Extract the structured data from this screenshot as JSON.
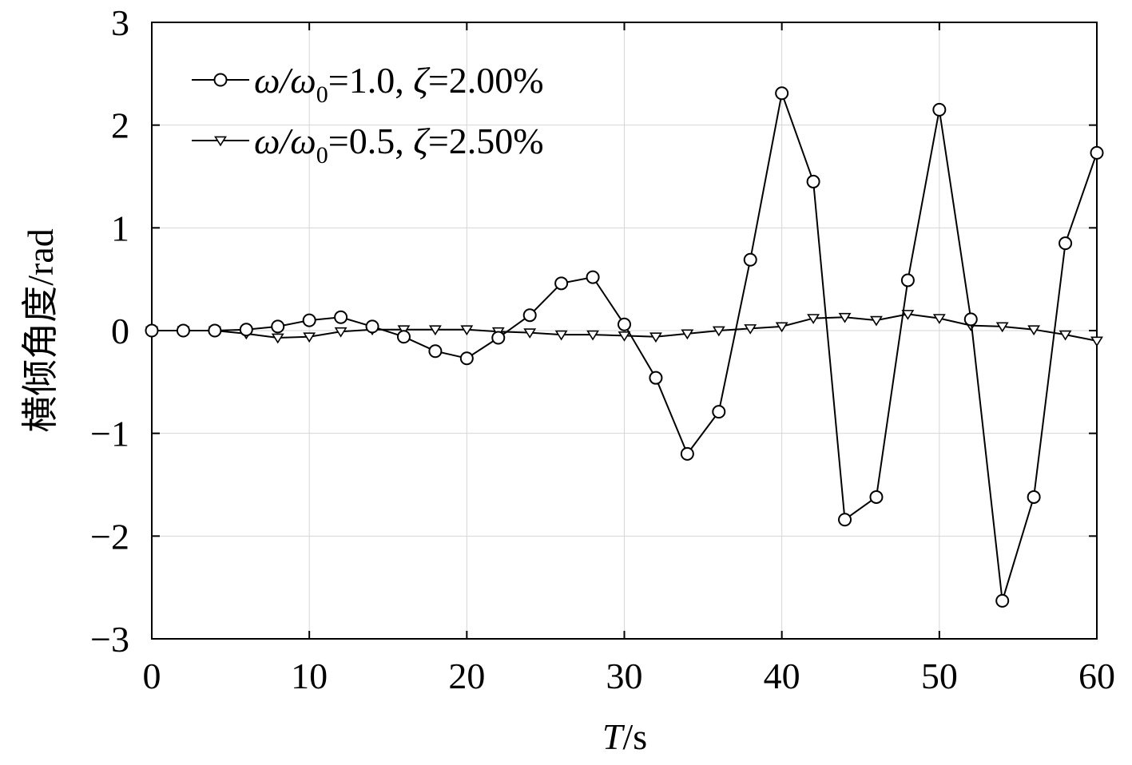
{
  "chart_data": {
    "type": "line",
    "xlabel": "T/s",
    "xlabel_italic_part": "T",
    "xlabel_unit": "/s",
    "ylabel": "横倾角度/rad",
    "xlim": [
      0,
      60
    ],
    "ylim": [
      -3,
      3
    ],
    "xticks": [
      0,
      10,
      20,
      30,
      40,
      50,
      60
    ],
    "yticks": [
      -3,
      -2,
      -1,
      0,
      1,
      2,
      3
    ],
    "ytick_labels": [
      "−3",
      "−2",
      "−1",
      "0",
      "1",
      "2",
      "3"
    ],
    "grid": true,
    "legend_position": "top-left",
    "series": [
      {
        "name": "ω/ω0=1.0, ζ=2.00%",
        "legend": {
          "omega": "ω",
          "slash": "/",
          "omega0": "ω",
          "sub": "0",
          "rest1": "=1.0, ",
          "zeta": "ζ",
          "rest2": "=2.00%"
        },
        "marker": "circle",
        "x": [
          0,
          2,
          4,
          6,
          8,
          10,
          12,
          14,
          16,
          18,
          20,
          22,
          24,
          26,
          28,
          30,
          32,
          34,
          36,
          38,
          40,
          42,
          44,
          46,
          48,
          50,
          52,
          54,
          56,
          58,
          60
        ],
        "y": [
          0,
          0,
          0,
          0.01,
          0.04,
          0.1,
          0.13,
          0.04,
          -0.06,
          -0.2,
          -0.27,
          -0.07,
          0.15,
          0.46,
          0.52,
          0.06,
          -0.46,
          -1.2,
          -0.79,
          0.69,
          2.31,
          1.45,
          -1.84,
          -1.62,
          0.49,
          2.15,
          0.11,
          -2.63,
          -1.62,
          0.85,
          1.73
        ]
      },
      {
        "name": "ω/ω0=0.5, ζ=2.50%",
        "legend": {
          "omega": "ω",
          "slash": "/",
          "omega0": "ω",
          "sub": "0",
          "rest1": "=0.5, ",
          "zeta": "ζ",
          "rest2": "=2.50%"
        },
        "marker": "triangle-down",
        "x": [
          0,
          2,
          4,
          6,
          8,
          10,
          12,
          14,
          16,
          18,
          20,
          22,
          24,
          26,
          28,
          30,
          32,
          34,
          36,
          38,
          40,
          42,
          44,
          46,
          48,
          50,
          52,
          54,
          56,
          58,
          60
        ],
        "y": [
          0,
          0,
          0,
          -0.03,
          -0.07,
          -0.06,
          -0.01,
          0.01,
          0.01,
          0.01,
          0.01,
          -0.01,
          -0.02,
          -0.04,
          -0.04,
          -0.05,
          -0.06,
          -0.03,
          0,
          0.02,
          0.04,
          0.12,
          0.13,
          0.1,
          0.16,
          0.12,
          0.05,
          0.04,
          0.01,
          -0.04,
          -0.1
        ]
      }
    ]
  }
}
